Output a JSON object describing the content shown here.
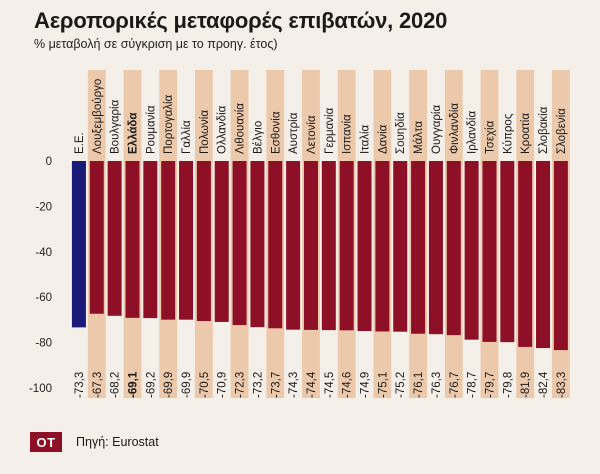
{
  "header": {
    "title": "Αεροπορικές μεταφορές επιβατών, 2020",
    "subtitle": "% μεταβολή σε σύγκριση με το προηγ. έτος)"
  },
  "footer": {
    "logo_text": "ΟΤ",
    "source": "Πηγή: Eurostat"
  },
  "colors": {
    "background": "#f4efe9",
    "band": "#edc9ac",
    "bar": "#8d1027",
    "highlight_bar": "#1a1a78"
  },
  "chart_data": {
    "type": "bar",
    "categories": [
      "Ε.Ε.",
      "Λουξεμβούργο",
      "Βουλγαρία",
      "Ελλάδα",
      "Ρουμανία",
      "Πορτογαλία",
      "Γαλλία",
      "Πολωνία",
      "Ολλανδία",
      "Λιθουανία",
      "Βέλγιο",
      "Εσθονία",
      "Αυστρία",
      "Λετονία",
      "Γερμανία",
      "Ισπανία",
      "Ιταλία",
      "Δανία",
      "Σουηδία",
      "Μάλτα",
      "Ουγγαρία",
      "Φινλανδία",
      "Ιρλανδία",
      "Τσεχία",
      "Κύπρος",
      "Κροατία",
      "Σλοβακία",
      "Σλοβενία"
    ],
    "values": [
      -73.3,
      -67.3,
      -68.2,
      -69.1,
      -69.2,
      -69.9,
      -69.9,
      -70.5,
      -70.9,
      -72.3,
      -73.2,
      -73.7,
      -74.3,
      -74.4,
      -74.5,
      -74.6,
      -74.9,
      -75.1,
      -75.2,
      -76.1,
      -76.3,
      -76.7,
      -78.7,
      -79.7,
      -79.8,
      -81.9,
      -82.4,
      -83.3
    ],
    "value_labels": [
      "-73,3",
      "-67,3",
      "-68,2",
      "-69,1",
      "-69,2",
      "-69,9",
      "-69,9",
      "-70,5",
      "-70,9",
      "-72,3",
      "-73,2",
      "-73,7",
      "-74,3",
      "-74,4",
      "-74,5",
      "-74,6",
      "-74,9",
      "-75,1",
      "-75,2",
      "-76,1",
      "-76,3",
      "-76,7",
      "-78,7",
      "-79,7",
      "-79,8",
      "-81,9",
      "-82,4",
      "-83,3"
    ],
    "highlight": [
      "Ε.Ε."
    ],
    "bold": [
      "Ελλάδα"
    ],
    "yticks": [
      0,
      -20,
      -40,
      -60,
      -80,
      -100
    ],
    "ylim": [
      -100,
      0
    ],
    "grid": false,
    "legend": false
  }
}
